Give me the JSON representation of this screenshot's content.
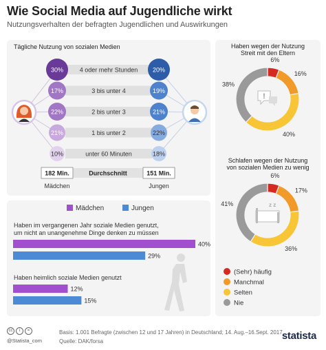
{
  "header": {
    "title": "Wie Social Media auf Jugendliche wirkt",
    "subtitle": "Nutzungsverhalten der befragten Jugendlichen und Auswirkungen"
  },
  "usage": {
    "title": "Tägliche Nutzung von sozialen Medien",
    "rows": [
      {
        "label": "4 oder mehr Stunden",
        "girls": "30%",
        "boys": "20%",
        "girls_color": "#6a3a98",
        "boys_color": "#2d5ca8"
      },
      {
        "label": "3 bis unter 4",
        "girls": "17%",
        "boys": "19%",
        "girls_color": "#a176c4",
        "boys_color": "#4e82cc"
      },
      {
        "label": "2 bis unter 3",
        "girls": "22%",
        "boys": "21%",
        "girls_color": "#a176c4",
        "boys_color": "#4e82cc"
      },
      {
        "label": "1 bis unter 2",
        "girls": "21%",
        "boys": "22%",
        "girls_color": "#c8a9de",
        "boys_color": "#86abe0"
      },
      {
        "label": "unter 60 Minuten",
        "girls": "10%",
        "boys": "18%",
        "girls_color": "#e3d2ee",
        "boys_color": "#bcd1ef"
      }
    ],
    "avg_girls": "182 Min.",
    "avg_label": "Durchschnitt",
    "avg_boys": "151 Min.",
    "girls_label": "Mädchen",
    "boys_label": "Jungen"
  },
  "chart_data": [
    {
      "type": "table",
      "title": "Tägliche Nutzung von sozialen Medien",
      "columns": [
        "Mädchen",
        "Jungen"
      ],
      "rows": [
        {
          "category": "4 oder mehr Stunden",
          "values": [
            30,
            20
          ]
        },
        {
          "category": "3 bis unter 4",
          "values": [
            17,
            19
          ]
        },
        {
          "category": "2 bis unter 3",
          "values": [
            22,
            21
          ]
        },
        {
          "category": "1 bis unter 2",
          "values": [
            21,
            22
          ]
        },
        {
          "category": "unter 60 Minuten",
          "values": [
            10,
            18
          ]
        },
        {
          "category": "Durchschnitt",
          "values": [
            "182 Min.",
            "151 Min."
          ]
        }
      ]
    },
    {
      "type": "bar",
      "categories": [
        "Haben im vergangenen Jahr soziale Medien genutzt, um nicht an unangenehme Dinge denken zu müssen",
        "Haben heimlich soziale Medien genutzt"
      ],
      "series": [
        {
          "name": "Mädchen",
          "values": [
            40,
            12
          ],
          "color": "#a14fcf"
        },
        {
          "name": "Jungen",
          "values": [
            29,
            15
          ],
          "color": "#4d8ad6"
        }
      ],
      "xlim": [
        0,
        40
      ]
    },
    {
      "type": "pie",
      "title": "Haben wegen der Nutzung Streit mit den Eltern",
      "labels": [
        "(Sehr) häufig",
        "Manchmal",
        "Selten",
        "Nie"
      ],
      "values": [
        6,
        16,
        40,
        38
      ],
      "colors": [
        "#d42a1f",
        "#f19a2a",
        "#f7c535",
        "#9a9a9a"
      ]
    },
    {
      "type": "pie",
      "title": "Schlafen wegen der Nutzung von sozialen Medien zu wenig",
      "labels": [
        "(Sehr) häufig",
        "Manchmal",
        "Selten",
        "Nie"
      ],
      "values": [
        6,
        17,
        36,
        41
      ],
      "colors": [
        "#d42a1f",
        "#f19a2a",
        "#f7c535",
        "#9a9a9a"
      ]
    }
  ],
  "bars": {
    "legend_girls": "Mädchen",
    "legend_boys": "Jungen",
    "q1_line1": "Haben im vergangenen Jahr soziale Medien genutzt,",
    "q1_line2": "um nicht an unangenehme Dinge denken zu müssen",
    "q2": "Haben heimlich soziale Medien genutzt",
    "labels": [
      "40%",
      "29%",
      "12%",
      "15%"
    ]
  },
  "donuts": {
    "d1_title_line1": "Haben wegen der Nutzung",
    "d1_title_line2": "Streit mit den Eltern",
    "d1_labels": [
      "6%",
      "16%",
      "40%",
      "38%"
    ],
    "d2_title_line1": "Schlafen wegen der Nutzung",
    "d2_title_line2": "von sozialen Medien zu wenig",
    "d2_labels": [
      "6%",
      "17%",
      "36%",
      "41%"
    ],
    "legend": [
      "(Sehr) häufig",
      "Manchmal",
      "Selten",
      "Nie"
    ]
  },
  "footer": {
    "statista_small": "@Statista_com",
    "basis": "Basis: 1.001 Befragte (zwischen 12 und 17 Jahren) in Deutschland; 14. Aug.–16.Sept. 2017",
    "quelle": "Quelle: DAK/forsa",
    "logo": "statista"
  }
}
